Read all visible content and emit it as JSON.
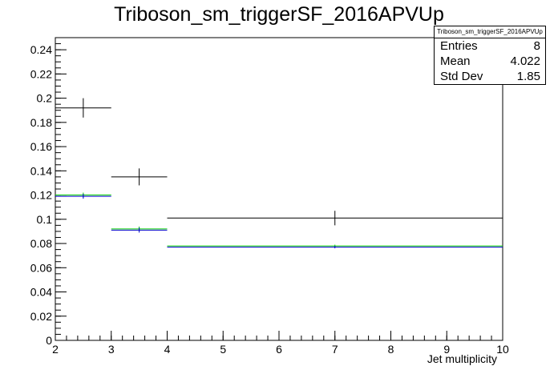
{
  "chart_data": {
    "type": "histogram",
    "title": "Triboson_sm_triggerSF_2016APVUp",
    "xlabel": "Jet multiplicity",
    "ylabel": "",
    "xlim": [
      2,
      10
    ],
    "ylim": [
      0,
      0.25
    ],
    "xticks": [
      2,
      3,
      4,
      5,
      6,
      7,
      8,
      9,
      10
    ],
    "yticks": [
      0,
      0.02,
      0.04,
      0.06,
      0.08,
      0.1,
      0.12,
      0.14,
      0.16,
      0.18,
      0.2,
      0.22,
      0.24
    ],
    "bins": [
      [
        2,
        3
      ],
      [
        3,
        4
      ],
      [
        4,
        10
      ]
    ],
    "series": [
      {
        "color": "#000000",
        "values": [
          0.192,
          0.135,
          0.101
        ],
        "errors": [
          0.008,
          0.007,
          0.006
        ]
      },
      {
        "color": "#00cc00",
        "values": [
          0.12,
          0.092,
          0.078
        ],
        "errors": [
          0.002,
          0.002,
          0.001
        ]
      },
      {
        "color": "#0000cc",
        "values": [
          0.119,
          0.091,
          0.077
        ],
        "errors": [
          0.002,
          0.002,
          0.001
        ]
      }
    ],
    "grid": false,
    "stats": {
      "name": "Triboson_sm_triggerSF_2016APVUp",
      "entries_label": "Entries",
      "entries": "8",
      "mean_label": "Mean",
      "mean": "4.022",
      "stddev_label": "Std Dev",
      "stddev": "1.85"
    }
  }
}
